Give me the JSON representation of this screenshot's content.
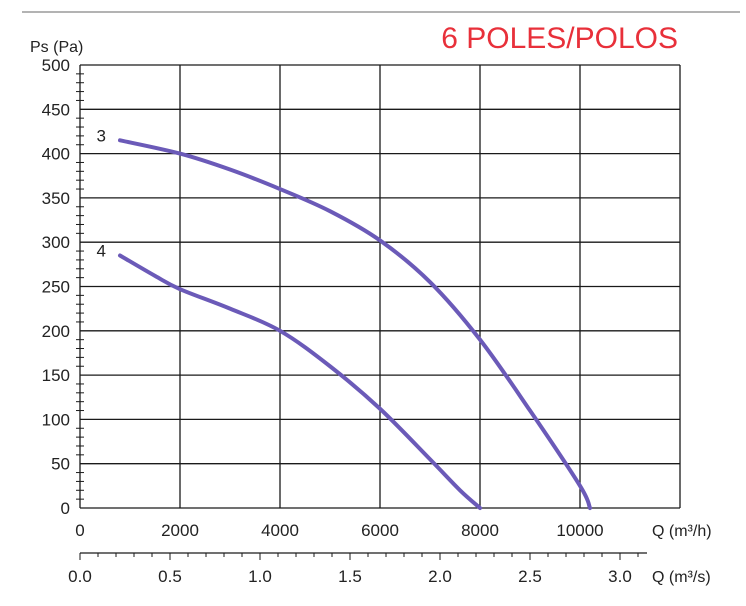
{
  "chart_data": {
    "type": "line",
    "title": "6 POLES/POLOS",
    "ylabel": "Ps (Pa)",
    "xlabel_primary": "Q (m³/h)",
    "xlabel_secondary": "Q (m³/s)",
    "xlim": [
      0,
      12000
    ],
    "ylim": [
      0,
      500
    ],
    "grid": true,
    "y_ticks": [
      "0",
      "50",
      "100",
      "150",
      "200",
      "250",
      "300",
      "350",
      "400",
      "450",
      "500"
    ],
    "x_ticks_primary": [
      "0",
      "2000",
      "4000",
      "6000",
      "8000",
      "10000"
    ],
    "x_ticks_secondary": [
      "0.0",
      "0.5",
      "1.0",
      "1.5",
      "2.0",
      "2.5",
      "3.0"
    ],
    "series": [
      {
        "name": "3",
        "color": "#6b5ab8",
        "x": [
          800,
          2000,
          3000,
          4000,
          5000,
          6000,
          7000,
          8000,
          9000,
          10000,
          10200
        ],
        "y": [
          415,
          400,
          382,
          360,
          335,
          302,
          255,
          190,
          110,
          25,
          0
        ]
      },
      {
        "name": "4",
        "color": "#6b5ab8",
        "x": [
          800,
          1500,
          2000,
          3000,
          4000,
          5000,
          6000,
          7000,
          7600,
          8000
        ],
        "y": [
          285,
          262,
          247,
          225,
          200,
          160,
          112,
          55,
          20,
          0
        ]
      }
    ]
  },
  "colors": {
    "title": "#e8303a",
    "curve": "#6b5ab8"
  }
}
